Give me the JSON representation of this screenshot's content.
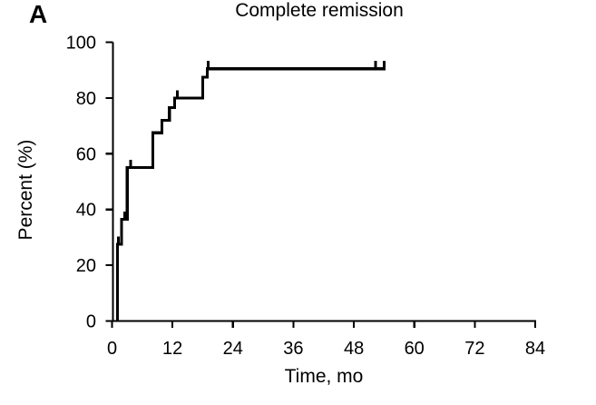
{
  "panel_label": "A",
  "chart_data": {
    "type": "line",
    "subtype": "kaplan-meier-step-curve",
    "title": "Complete remission",
    "xlabel": "Time, mo",
    "ylabel": "Percent (%)",
    "xlim": [
      0,
      84
    ],
    "ylim": [
      0,
      100
    ],
    "x_ticks": [
      0,
      12,
      24,
      36,
      48,
      60,
      72,
      84
    ],
    "y_ticks": [
      0,
      20,
      40,
      60,
      80,
      100
    ],
    "grid": false,
    "legend": "none",
    "series": [
      {
        "name": "Complete remission",
        "color": "#000000",
        "steps_month_percent": [
          [
            1.1,
            27.5
          ],
          [
            1.9,
            36.5
          ],
          [
            3.0,
            55
          ],
          [
            8.1,
            67.5
          ],
          [
            9.9,
            72
          ],
          [
            11.4,
            76.5
          ],
          [
            12.4,
            80
          ],
          [
            18.0,
            87.5
          ],
          [
            18.9,
            90.5
          ]
        ],
        "start_month": 1.1,
        "end_month": 54.3,
        "final_percent": 90.5,
        "censor_tick_months": [
          1.3,
          2.5,
          3.7,
          13.0,
          19.1,
          52.3,
          54.0
        ]
      }
    ]
  },
  "colors": {
    "curve": "#000000",
    "axis": "#000000",
    "text": "#000000",
    "background": "#ffffff"
  }
}
